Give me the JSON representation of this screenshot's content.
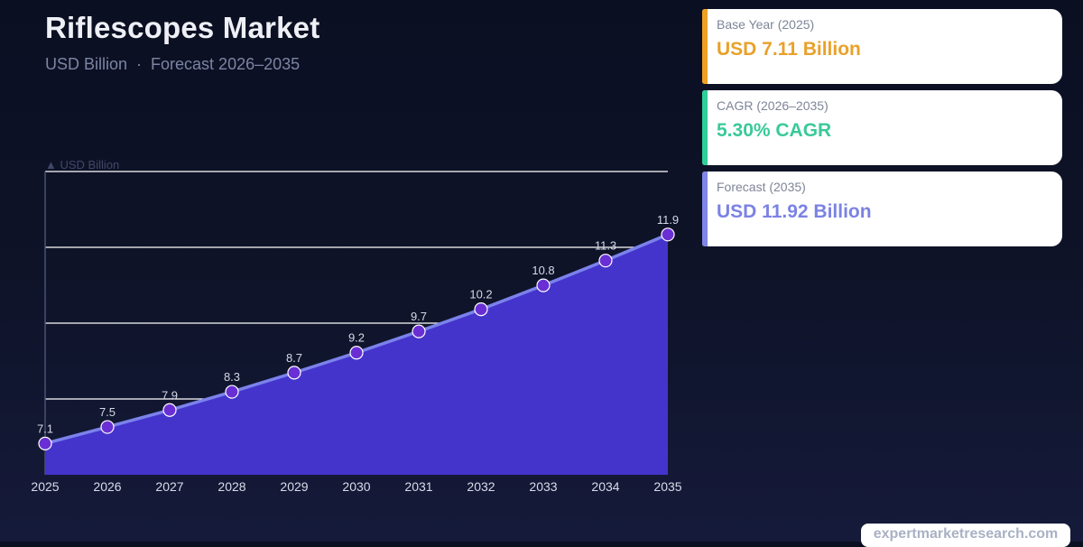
{
  "header": {
    "title": "Riflescopes Market",
    "unit": "USD Billion",
    "separator": "·",
    "forecast_label": "Forecast 2026–2035"
  },
  "cards": [
    {
      "label": "Base Year (2025)",
      "value": "USD 7.11 Billion",
      "color": "#f0a024"
    },
    {
      "label": "CAGR (2026–2035)",
      "value": "5.30% CAGR",
      "color": "#2fcf9a"
    },
    {
      "label": "Forecast (2035)",
      "value": "USD 11.92 Billion",
      "color": "#7f86e6"
    }
  ],
  "watermark": "expertmarketresearch.com",
  "chart_data": {
    "type": "area",
    "title": "Riflescopes Market",
    "subtitle": "USD Billion · Forecast 2026–2035",
    "xlabel": "",
    "ylabel": "▲ USD Billion",
    "categories": [
      "2025",
      "2026",
      "2027",
      "2028",
      "2029",
      "2030",
      "2031",
      "2032",
      "2033",
      "2034",
      "2035"
    ],
    "values": [
      7.11,
      7.49,
      7.88,
      8.3,
      8.74,
      9.2,
      9.69,
      10.2,
      10.75,
      11.32,
      11.92
    ],
    "data_labels": [
      "7.1",
      "7.5",
      "7.9",
      "8.3",
      "8.7",
      "9.2",
      "9.7",
      "10.2",
      "10.8",
      "11.3",
      "11.9"
    ],
    "ylim": [
      6.39,
      13.37
    ],
    "gridlines": 4,
    "grid": true,
    "legend": "none",
    "colors": {
      "fill": "#4434cc",
      "line": "#7b82ea",
      "marker": "#6a2fd4",
      "marker_stroke": "#ffffff"
    }
  }
}
